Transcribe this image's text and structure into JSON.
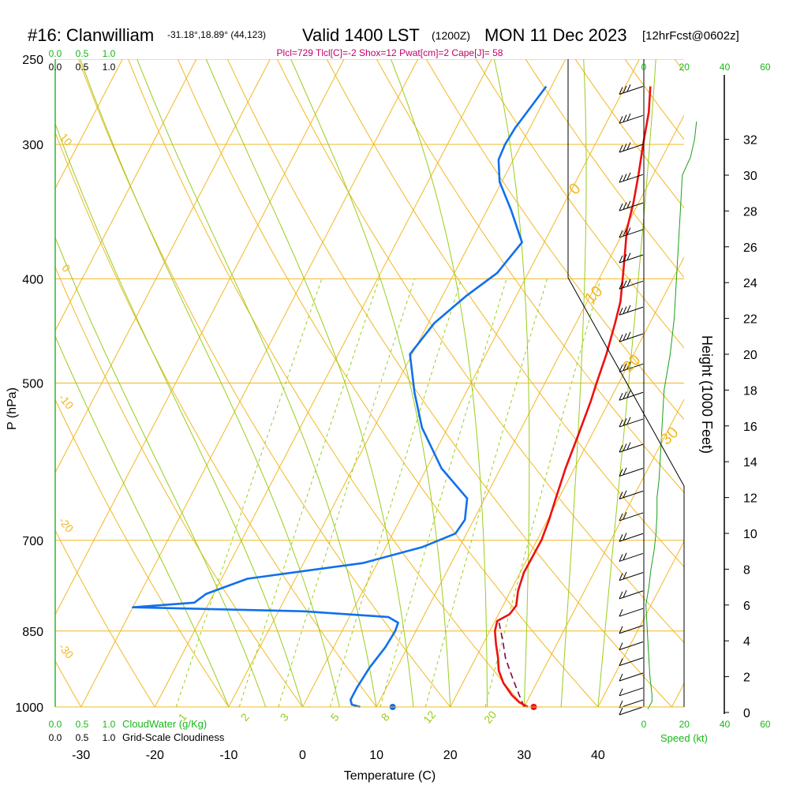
{
  "header": {
    "station": "#16: Clanwilliam",
    "coords": "-31.18°,18.89° (44,123)",
    "valid_prefix": "Valid 1400 LST",
    "valid_z": "(1200Z)",
    "date": "MON 11 Dec 2023",
    "forecast": "[12hrFcst@0602z]",
    "indices": "Plcl=729 Tlcl[C]=-2 Shox=12 Pwat[cm]=2 Cape[J]= 58"
  },
  "chart_data": {
    "type": "skew-t",
    "xlabel": "Temperature (C)",
    "ylabel": "P (hPa)",
    "right_ylabel": "Height (1000 Feet)",
    "temp_ticks": [
      "-30",
      "-20",
      "-10",
      "0",
      "10",
      "20",
      "30",
      "40"
    ],
    "pressure_ticks": [
      "250",
      "300",
      "400",
      "500",
      "700",
      "850",
      "1000"
    ],
    "height_ticks": [
      "0",
      "2",
      "4",
      "6",
      "8",
      "10",
      "12",
      "14",
      "16",
      "18",
      "20",
      "22",
      "24",
      "26",
      "28",
      "30",
      "32"
    ],
    "cloud_scale_top": [
      "0.0",
      "0.5",
      "1.0"
    ],
    "cloud_scale_top2": [
      "0.0",
      "0.5",
      "1.0"
    ],
    "cloud_scale_bottom_green": [
      "0.0",
      "0.5",
      "1.0"
    ],
    "cloud_scale_bottom_black": [
      "0.0",
      "0.5",
      "1.0"
    ],
    "cloudwater_label": "CloudWater (g/Kg)",
    "cloudiness_label": "Grid-Scale Cloudiness",
    "speed_ticks_top": [
      "0",
      "20",
      "40",
      "60"
    ],
    "speed_ticks_bottom": [
      "0",
      "20",
      "40",
      "60"
    ],
    "speed_label": "Speed (kt)",
    "dry_adiabat_labels": [
      "10",
      "0",
      "-10",
      "-20",
      "-30"
    ],
    "moist_adiabat_labels": [
      "0",
      "10",
      "20",
      "30"
    ],
    "mixing_ratio_labels": [
      "1",
      "2",
      "3",
      "5",
      "8",
      "12",
      "20"
    ],
    "temperature_profile": [
      {
        "p": 1000,
        "t": 30.5
      },
      {
        "p": 990,
        "t": 29
      },
      {
        "p": 975,
        "t": 27.5
      },
      {
        "p": 950,
        "t": 25.5
      },
      {
        "p": 925,
        "t": 24
      },
      {
        "p": 900,
        "t": 23
      },
      {
        "p": 875,
        "t": 21.8
      },
      {
        "p": 850,
        "t": 20.7
      },
      {
        "p": 832,
        "t": 20.3
      },
      {
        "p": 820,
        "t": 21.5
      },
      {
        "p": 805,
        "t": 21.8
      },
      {
        "p": 780,
        "t": 21
      },
      {
        "p": 750,
        "t": 20.5
      },
      {
        "p": 700,
        "t": 20.6
      },
      {
        "p": 670,
        "t": 20.2
      },
      {
        "p": 640,
        "t": 19.6
      },
      {
        "p": 600,
        "t": 18.8
      },
      {
        "p": 560,
        "t": 18.2
      },
      {
        "p": 520,
        "t": 17.5
      },
      {
        "p": 500,
        "t": 17
      },
      {
        "p": 470,
        "t": 16.3
      },
      {
        "p": 440,
        "t": 15.3
      },
      {
        "p": 420,
        "t": 14.5
      },
      {
        "p": 400,
        "t": 13.2
      },
      {
        "p": 380,
        "t": 11.8
      },
      {
        "p": 360,
        "t": 10.3
      },
      {
        "p": 340,
        "t": 9.3
      },
      {
        "p": 320,
        "t": 8
      },
      {
        "p": 300,
        "t": 6.5
      },
      {
        "p": 280,
        "t": 5
      },
      {
        "p": 265,
        "t": 3.4
      }
    ],
    "parcel_profile": [
      {
        "p": 1000,
        "t": 30
      },
      {
        "p": 975,
        "t": 28.5
      },
      {
        "p": 950,
        "t": 27
      },
      {
        "p": 925,
        "t": 25.5
      },
      {
        "p": 900,
        "t": 24
      },
      {
        "p": 875,
        "t": 22.8
      },
      {
        "p": 850,
        "t": 21.5
      },
      {
        "p": 832,
        "t": 20.5
      }
    ],
    "dewpoint_profile": [
      {
        "p": 1000,
        "t": 7.8
      },
      {
        "p": 995,
        "t": 6.5
      },
      {
        "p": 985,
        "t": 6
      },
      {
        "p": 960,
        "t": 6
      },
      {
        "p": 920,
        "t": 6.3
      },
      {
        "p": 880,
        "t": 7
      },
      {
        "p": 850,
        "t": 7.2
      },
      {
        "p": 835,
        "t": 7
      },
      {
        "p": 825,
        "t": 5.3
      },
      {
        "p": 815,
        "t": -6.5
      },
      {
        "p": 808,
        "t": -30
      },
      {
        "p": 800,
        "t": -22
      },
      {
        "p": 785,
        "t": -21
      },
      {
        "p": 760,
        "t": -16.5
      },
      {
        "p": 735,
        "t": -2
      },
      {
        "p": 710,
        "t": 5
      },
      {
        "p": 690,
        "t": 8.5
      },
      {
        "p": 670,
        "t": 8.8
      },
      {
        "p": 640,
        "t": 7.6
      },
      {
        "p": 600,
        "t": 2
      },
      {
        "p": 550,
        "t": -3.5
      },
      {
        "p": 510,
        "t": -7
      },
      {
        "p": 470,
        "t": -10.3
      },
      {
        "p": 440,
        "t": -9.2
      },
      {
        "p": 415,
        "t": -6.8
      },
      {
        "p": 395,
        "t": -4.2
      },
      {
        "p": 370,
        "t": -3
      },
      {
        "p": 345,
        "t": -6.8
      },
      {
        "p": 325,
        "t": -10.3
      },
      {
        "p": 310,
        "t": -12
      },
      {
        "p": 300,
        "t": -12.2
      },
      {
        "p": 290,
        "t": -12
      },
      {
        "p": 280,
        "t": -11.5
      },
      {
        "p": 265,
        "t": -10.7
      }
    ],
    "surface_temperature_point": {
      "p": 1000,
      "t": 31.3
    },
    "surface_dewpoint_point": {
      "p": 1000,
      "t": 12.2
    },
    "wind_speed_profile": [
      {
        "h": 0.2,
        "s": 2
      },
      {
        "h": 0.6,
        "s": 4
      },
      {
        "h": 1,
        "s": 4
      },
      {
        "h": 2,
        "s": 3
      },
      {
        "h": 3,
        "s": 2.5
      },
      {
        "h": 4,
        "s": 2
      },
      {
        "h": 5,
        "s": 1.5
      },
      {
        "h": 6,
        "s": 1
      },
      {
        "h": 7,
        "s": 2.5
      },
      {
        "h": 8,
        "s": 3.5
      },
      {
        "h": 9,
        "s": 5
      },
      {
        "h": 10,
        "s": 6
      },
      {
        "h": 11,
        "s": 6.5
      },
      {
        "h": 12,
        "s": 6.5
      },
      {
        "h": 13,
        "s": 7.5
      },
      {
        "h": 14,
        "s": 8
      },
      {
        "h": 16,
        "s": 9
      },
      {
        "h": 18,
        "s": 10
      },
      {
        "h": 20,
        "s": 13
      },
      {
        "h": 22,
        "s": 15
      },
      {
        "h": 24,
        "s": 16
      },
      {
        "h": 26,
        "s": 17
      },
      {
        "h": 28,
        "s": 18
      },
      {
        "h": 30,
        "s": 19
      },
      {
        "h": 31,
        "s": 23
      },
      {
        "h": 32,
        "s": 25
      },
      {
        "h": 33,
        "s": 26
      }
    ],
    "wind_barb_pressures": [
      265,
      282,
      300,
      320,
      340,
      360,
      380,
      402,
      425,
      450,
      480,
      510,
      540,
      570,
      600,
      630,
      660,
      690,
      720,
      750,
      780,
      810,
      840,
      870,
      900,
      930,
      960,
      985,
      1000
    ]
  },
  "colors": {
    "isotherm": "#f2b824",
    "isobar": "#f2b824",
    "dry_adiabat": "#f2b824",
    "moist_adiabat": "#9acd1c",
    "mixing_ratio": "#9acd1c",
    "temperature": "#ee1010",
    "dewpoint": "#1070ee",
    "parcel": "#800040",
    "indices_text": "#c0006a",
    "green_text": "#18b818",
    "green_line": "#1aa01a",
    "frame": "#000000"
  }
}
